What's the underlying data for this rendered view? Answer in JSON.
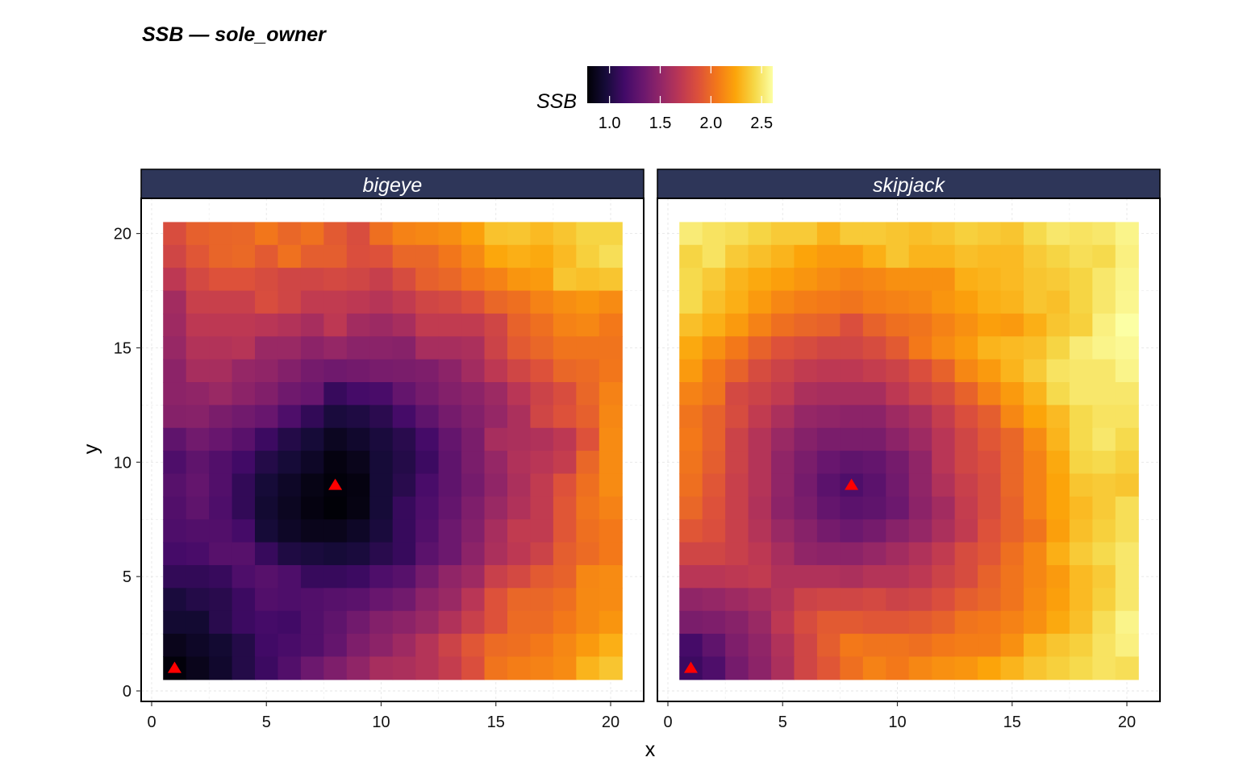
{
  "chart_data": {
    "type": "heatmap",
    "title": "SSB — sole_owner",
    "xlabel": "x",
    "ylabel": "y",
    "xlim": [
      0,
      20
    ],
    "ylim": [
      0,
      20
    ],
    "x_ticks": [
      "0",
      "5",
      "10",
      "15",
      "20"
    ],
    "y_ticks": [
      "0",
      "5",
      "10",
      "15",
      "20"
    ],
    "grid": true,
    "legend": {
      "title": "SSB",
      "placement": "top",
      "ticks": [
        "1.0",
        "1.5",
        "2.0",
        "2.5"
      ],
      "tick_values": [
        1.0,
        1.5,
        2.0,
        2.5
      ],
      "range": [
        0.78,
        2.61
      ],
      "colormap": "inferno"
    },
    "marker_color": "#ff0000",
    "strip_color": "#2e3659",
    "rows_order": "y=20 down to y=1; columns x=1..20",
    "facets": [
      {
        "name": "bigeye",
        "markers": [
          {
            "x": 1,
            "y": 1
          },
          {
            "x": 8,
            "y": 9
          }
        ],
        "values": [
          [
            1.85,
            1.95,
            1.97,
            1.98,
            2.05,
            1.98,
            2.03,
            1.92,
            1.85,
            2.02,
            2.1,
            2.12,
            2.15,
            2.22,
            2.35,
            2.36,
            2.32,
            2.36,
            2.42,
            2.42
          ],
          [
            1.8,
            1.9,
            1.97,
            1.99,
            1.92,
            2.03,
            1.94,
            1.94,
            1.86,
            1.88,
            1.98,
            1.98,
            2.05,
            2.13,
            2.25,
            2.28,
            2.26,
            2.32,
            2.4,
            2.46
          ],
          [
            1.7,
            1.82,
            1.88,
            1.88,
            1.84,
            1.8,
            1.8,
            1.82,
            1.8,
            1.75,
            1.84,
            1.95,
            1.98,
            2.05,
            2.1,
            2.18,
            2.2,
            2.36,
            2.34,
            2.36
          ],
          [
            1.58,
            1.76,
            1.76,
            1.76,
            1.85,
            1.8,
            1.72,
            1.72,
            1.7,
            1.67,
            1.72,
            1.8,
            1.82,
            1.88,
            1.98,
            2.02,
            2.1,
            2.15,
            2.18,
            2.14
          ],
          [
            1.56,
            1.7,
            1.7,
            1.7,
            1.68,
            1.65,
            1.6,
            1.7,
            1.58,
            1.55,
            1.6,
            1.72,
            1.72,
            1.72,
            1.8,
            1.96,
            2.02,
            2.1,
            2.12,
            2.06
          ],
          [
            1.53,
            1.65,
            1.65,
            1.67,
            1.54,
            1.54,
            1.48,
            1.52,
            1.47,
            1.47,
            1.46,
            1.6,
            1.6,
            1.62,
            1.78,
            1.92,
            1.98,
            2.04,
            2.04,
            2.04
          ],
          [
            1.48,
            1.6,
            1.6,
            1.52,
            1.5,
            1.44,
            1.38,
            1.35,
            1.37,
            1.39,
            1.4,
            1.42,
            1.48,
            1.58,
            1.7,
            1.8,
            1.88,
            1.98,
            2.0,
            2.05
          ],
          [
            1.48,
            1.5,
            1.54,
            1.48,
            1.43,
            1.35,
            1.32,
            1.1,
            1.16,
            1.18,
            1.3,
            1.38,
            1.44,
            1.48,
            1.55,
            1.68,
            1.78,
            1.85,
            1.98,
            2.1
          ],
          [
            1.45,
            1.46,
            1.4,
            1.36,
            1.32,
            1.2,
            1.08,
            0.98,
            1.0,
            1.05,
            1.16,
            1.28,
            1.38,
            1.44,
            1.52,
            1.62,
            1.8,
            1.88,
            1.95,
            2.12
          ],
          [
            1.28,
            1.36,
            1.32,
            1.25,
            1.12,
            1.02,
            0.96,
            0.88,
            0.92,
            0.98,
            1.04,
            1.16,
            1.3,
            1.4,
            1.6,
            1.62,
            1.64,
            1.7,
            1.88,
            2.14
          ],
          [
            1.2,
            1.28,
            1.22,
            1.14,
            1.02,
            0.96,
            0.9,
            0.82,
            0.86,
            0.96,
            1.02,
            1.12,
            1.28,
            1.4,
            1.52,
            1.64,
            1.68,
            1.74,
            1.98,
            2.14
          ],
          [
            1.24,
            1.3,
            1.22,
            1.08,
            0.96,
            0.9,
            0.84,
            0.8,
            0.82,
            0.96,
            1.04,
            1.18,
            1.28,
            1.38,
            1.5,
            1.62,
            1.72,
            1.88,
            2.02,
            2.14
          ],
          [
            1.22,
            1.28,
            1.2,
            1.08,
            0.94,
            0.88,
            0.82,
            0.79,
            0.83,
            0.96,
            1.1,
            1.2,
            1.3,
            1.42,
            1.54,
            1.64,
            1.72,
            1.9,
            2.04,
            2.1
          ],
          [
            1.2,
            1.22,
            1.22,
            1.16,
            0.96,
            0.9,
            0.86,
            0.86,
            0.9,
            0.98,
            1.1,
            1.22,
            1.34,
            1.44,
            1.6,
            1.72,
            1.72,
            1.9,
            2.02,
            2.06
          ],
          [
            1.16,
            1.18,
            1.24,
            1.24,
            1.1,
            1.0,
            0.98,
            0.96,
            0.98,
            1.04,
            1.1,
            1.26,
            1.34,
            1.48,
            1.62,
            1.7,
            1.78,
            1.94,
            2.0,
            2.06
          ],
          [
            1.08,
            1.08,
            1.1,
            1.2,
            1.24,
            1.2,
            1.1,
            1.1,
            1.12,
            1.2,
            1.24,
            1.38,
            1.5,
            1.56,
            1.76,
            1.82,
            1.92,
            1.96,
            2.12,
            2.14
          ],
          [
            0.98,
            1.02,
            1.04,
            1.12,
            1.22,
            1.2,
            1.22,
            1.24,
            1.26,
            1.32,
            1.36,
            1.48,
            1.54,
            1.68,
            1.88,
            1.98,
            1.98,
            2.02,
            2.13,
            2.14
          ],
          [
            0.94,
            0.94,
            1.04,
            1.12,
            1.16,
            1.14,
            1.22,
            1.28,
            1.36,
            1.44,
            1.48,
            1.54,
            1.64,
            1.76,
            1.88,
            2.0,
            2.0,
            2.06,
            2.13,
            2.18
          ],
          [
            0.86,
            0.9,
            0.94,
            1.02,
            1.14,
            1.18,
            1.22,
            1.3,
            1.42,
            1.48,
            1.56,
            1.66,
            1.78,
            1.9,
            2.0,
            2.02,
            2.06,
            2.12,
            2.2,
            2.28
          ],
          [
            0.8,
            0.86,
            0.92,
            1.02,
            1.12,
            1.22,
            1.34,
            1.42,
            1.5,
            1.6,
            1.62,
            1.66,
            1.74,
            1.86,
            2.04,
            2.08,
            2.1,
            2.14,
            2.3,
            2.36
          ]
        ]
      },
      {
        "name": "skipjack",
        "markers": [
          {
            "x": 1,
            "y": 1
          },
          {
            "x": 8,
            "y": 9
          }
        ],
        "values": [
          [
            2.52,
            2.48,
            2.46,
            2.42,
            2.38,
            2.38,
            2.3,
            2.38,
            2.38,
            2.36,
            2.34,
            2.36,
            2.4,
            2.38,
            2.36,
            2.44,
            2.5,
            2.48,
            2.5,
            2.56
          ],
          [
            2.42,
            2.48,
            2.38,
            2.34,
            2.3,
            2.24,
            2.2,
            2.2,
            2.28,
            2.36,
            2.3,
            2.3,
            2.34,
            2.32,
            2.32,
            2.38,
            2.42,
            2.46,
            2.44,
            2.54
          ],
          [
            2.44,
            2.38,
            2.3,
            2.26,
            2.22,
            2.18,
            2.14,
            2.1,
            2.12,
            2.16,
            2.16,
            2.16,
            2.28,
            2.3,
            2.32,
            2.36,
            2.38,
            2.42,
            2.5,
            2.56
          ],
          [
            2.44,
            2.34,
            2.28,
            2.2,
            2.12,
            2.08,
            2.06,
            2.04,
            2.08,
            2.1,
            2.12,
            2.18,
            2.22,
            2.28,
            2.3,
            2.36,
            2.34,
            2.42,
            2.5,
            2.57
          ],
          [
            2.34,
            2.28,
            2.2,
            2.1,
            2.02,
            1.98,
            1.96,
            1.86,
            1.96,
            2.02,
            2.04,
            2.1,
            2.16,
            2.22,
            2.2,
            2.28,
            2.36,
            2.4,
            2.54,
            2.61
          ],
          [
            2.26,
            2.16,
            2.06,
            1.96,
            1.88,
            1.84,
            1.8,
            1.8,
            1.84,
            1.92,
            2.06,
            2.14,
            2.2,
            2.3,
            2.32,
            2.34,
            2.42,
            2.52,
            2.56,
            2.58
          ],
          [
            2.2,
            2.06,
            1.96,
            1.84,
            1.78,
            1.72,
            1.7,
            1.7,
            1.74,
            1.78,
            1.86,
            1.96,
            2.12,
            2.2,
            2.3,
            2.38,
            2.48,
            2.5,
            2.5,
            2.56
          ],
          [
            2.1,
            2.04,
            1.82,
            1.78,
            1.72,
            1.62,
            1.6,
            1.6,
            1.6,
            1.7,
            1.78,
            1.84,
            1.96,
            2.1,
            2.2,
            2.3,
            2.44,
            2.5,
            2.5,
            2.5
          ],
          [
            2.04,
            1.96,
            1.84,
            1.72,
            1.62,
            1.52,
            1.5,
            1.48,
            1.48,
            1.56,
            1.62,
            1.74,
            1.86,
            1.94,
            2.12,
            2.24,
            2.32,
            2.44,
            2.48,
            2.48
          ],
          [
            2.06,
            1.96,
            1.78,
            1.66,
            1.54,
            1.45,
            1.4,
            1.4,
            1.4,
            1.48,
            1.56,
            1.68,
            1.8,
            1.9,
            1.98,
            2.14,
            2.3,
            2.44,
            2.5,
            2.44
          ],
          [
            2.04,
            1.94,
            1.78,
            1.66,
            1.5,
            1.4,
            1.32,
            1.28,
            1.3,
            1.38,
            1.5,
            1.68,
            1.8,
            1.86,
            1.98,
            2.1,
            2.26,
            2.42,
            2.44,
            2.4
          ],
          [
            2.02,
            1.9,
            1.76,
            1.66,
            1.5,
            1.38,
            1.26,
            1.2,
            1.26,
            1.36,
            1.5,
            1.64,
            1.76,
            1.84,
            1.98,
            2.1,
            2.24,
            2.36,
            2.38,
            2.36
          ],
          [
            1.98,
            1.88,
            1.76,
            1.64,
            1.48,
            1.4,
            1.3,
            1.26,
            1.28,
            1.34,
            1.48,
            1.58,
            1.74,
            1.84,
            1.96,
            2.1,
            2.24,
            2.32,
            2.38,
            2.46
          ],
          [
            1.9,
            1.86,
            1.76,
            1.66,
            1.54,
            1.46,
            1.38,
            1.34,
            1.38,
            1.46,
            1.52,
            1.62,
            1.72,
            1.88,
            1.96,
            2.04,
            2.22,
            2.34,
            2.4,
            2.46
          ],
          [
            1.8,
            1.8,
            1.76,
            1.7,
            1.6,
            1.5,
            1.48,
            1.48,
            1.52,
            1.58,
            1.64,
            1.72,
            1.84,
            1.9,
            2.02,
            2.12,
            2.28,
            2.38,
            2.44,
            2.5
          ],
          [
            1.68,
            1.68,
            1.7,
            1.72,
            1.64,
            1.64,
            1.64,
            1.62,
            1.66,
            1.66,
            1.7,
            1.78,
            1.84,
            1.96,
            2.04,
            2.12,
            2.2,
            2.32,
            2.38,
            2.5
          ],
          [
            1.5,
            1.52,
            1.56,
            1.6,
            1.66,
            1.78,
            1.8,
            1.8,
            1.82,
            1.78,
            1.8,
            1.86,
            1.94,
            1.98,
            2.04,
            2.14,
            2.22,
            2.32,
            2.4,
            2.5
          ],
          [
            1.4,
            1.42,
            1.46,
            1.54,
            1.7,
            1.84,
            1.92,
            1.92,
            1.9,
            1.9,
            1.92,
            1.96,
            2.04,
            2.06,
            2.1,
            2.16,
            2.26,
            2.34,
            2.46,
            2.56
          ],
          [
            1.16,
            1.28,
            1.42,
            1.5,
            1.64,
            1.8,
            1.94,
            2.06,
            2.04,
            2.04,
            2.02,
            2.06,
            2.08,
            2.08,
            2.16,
            2.3,
            2.36,
            2.4,
            2.48,
            2.54
          ],
          [
            1.12,
            1.2,
            1.38,
            1.48,
            1.62,
            1.8,
            1.9,
            2.02,
            2.1,
            2.06,
            2.12,
            2.16,
            2.18,
            2.24,
            2.3,
            2.36,
            2.4,
            2.44,
            2.48,
            2.46
          ]
        ]
      }
    ]
  }
}
